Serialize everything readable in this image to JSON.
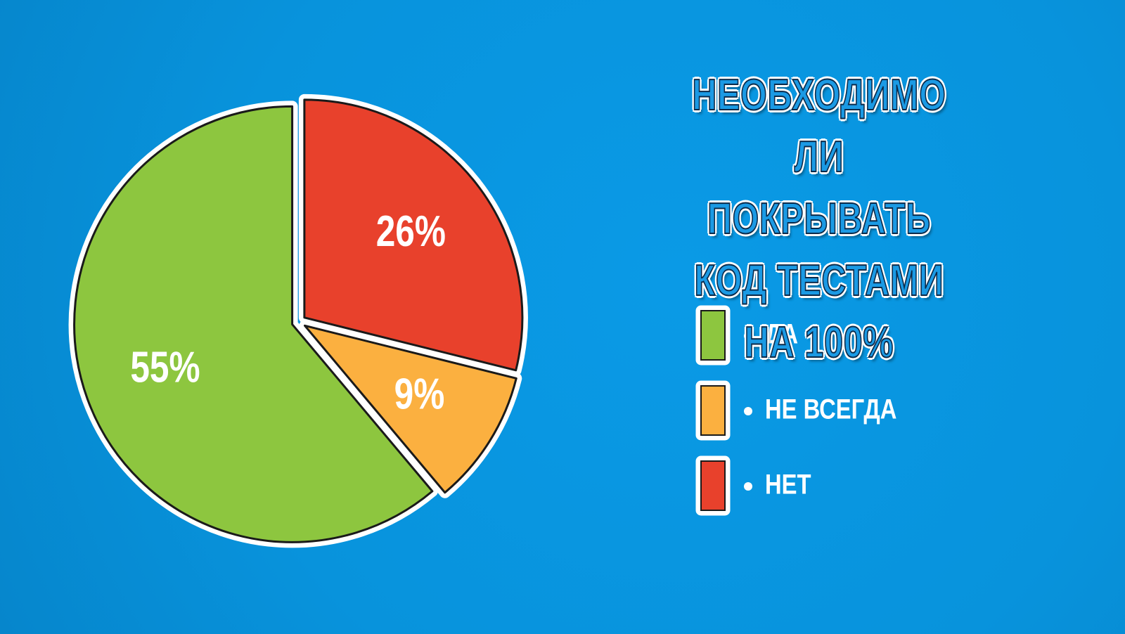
{
  "chart_data": {
    "type": "pie",
    "title": "НЕОБХОДИМО ЛИ ПОКРЫВАТЬ КОД ТЕСТАМИ НА 100%",
    "categories": [
      "ДА",
      "НЕ ВСЕГДА",
      "НЕТ"
    ],
    "values": [
      55,
      9,
      26
    ],
    "value_labels": [
      "55%",
      "9%",
      "26%"
    ],
    "colors": [
      "#8dc63f",
      "#fbb040",
      "#e8412c"
    ],
    "legend": "right"
  }
}
